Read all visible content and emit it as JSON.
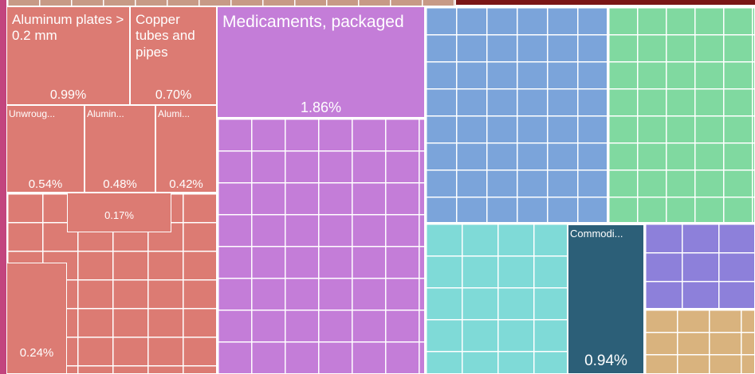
{
  "chart_data": {
    "type": "treemap",
    "categories": [
      "Aluminum plates > 0.2 mm",
      "Copper tubes and pipes",
      "Medicaments, packaged",
      "Unwroug...",
      "Alumin...",
      "Alumi...",
      null,
      null,
      "Commodi..."
    ],
    "values": [
      0.99,
      0.7,
      1.86,
      0.54,
      0.48,
      0.42,
      0.17,
      0.24,
      0.94
    ],
    "value_labels": [
      "0.99%",
      "0.70%",
      "1.86%",
      "0.54%",
      "0.48%",
      "0.42%",
      "0.17%",
      "0.24%",
      "0.94%"
    ],
    "colors": [
      "#dc7b73",
      "#dc7b73",
      "#c47dd8",
      "#dc7b73",
      "#dc7b73",
      "#dc7b73",
      "#dc7b73",
      "#dc7b73",
      "#2c5f78"
    ]
  }
}
